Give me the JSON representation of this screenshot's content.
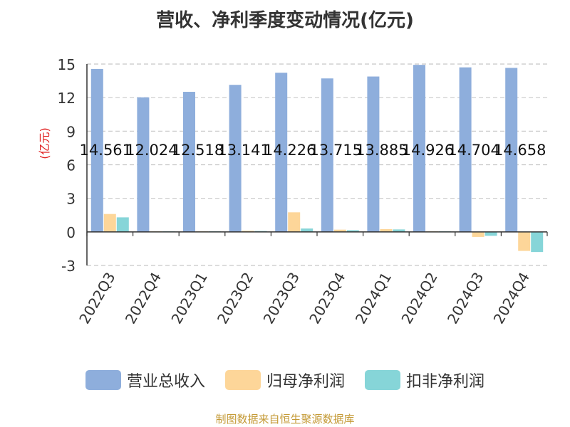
{
  "chart_data": {
    "type": "bar",
    "title": "营收、净利季度变动情况(亿元)",
    "ylabel": "(亿元)",
    "categories": [
      "2022Q3",
      "2022Q4",
      "2023Q1",
      "2023Q2",
      "2023Q3",
      "2023Q4",
      "2024Q1",
      "2024Q2",
      "2024Q3",
      "2024Q4"
    ],
    "ylim": [
      -3,
      15
    ],
    "yticks": [
      -3,
      0,
      3,
      6,
      9,
      12,
      15
    ],
    "grid": true,
    "legend_position": "bottom",
    "series": [
      {
        "name": "营业总收入",
        "color": "#8eaedc",
        "values": [
          14.561,
          12.024,
          12.518,
          13.141,
          14.226,
          13.715,
          13.885,
          14.926,
          14.704,
          14.658
        ]
      },
      {
        "name": "归母净利润",
        "color": "#fdd699",
        "values": [
          1.6,
          0.05,
          0.05,
          0.1,
          1.75,
          0.2,
          0.25,
          0.05,
          -0.45,
          -1.7
        ]
      },
      {
        "name": "扣非净利润",
        "color": "#86d5d8",
        "values": [
          1.3,
          0.05,
          0.05,
          0.08,
          0.3,
          0.15,
          0.22,
          0.05,
          -0.35,
          -1.8
        ]
      }
    ],
    "data_labels": [
      "14.561",
      "12.024",
      "12.518",
      "13.141",
      "14.226",
      "13.715",
      "13.885",
      "14.926",
      "14.704",
      "14.658"
    ]
  },
  "source": "制图数据来自恒生聚源数据库"
}
